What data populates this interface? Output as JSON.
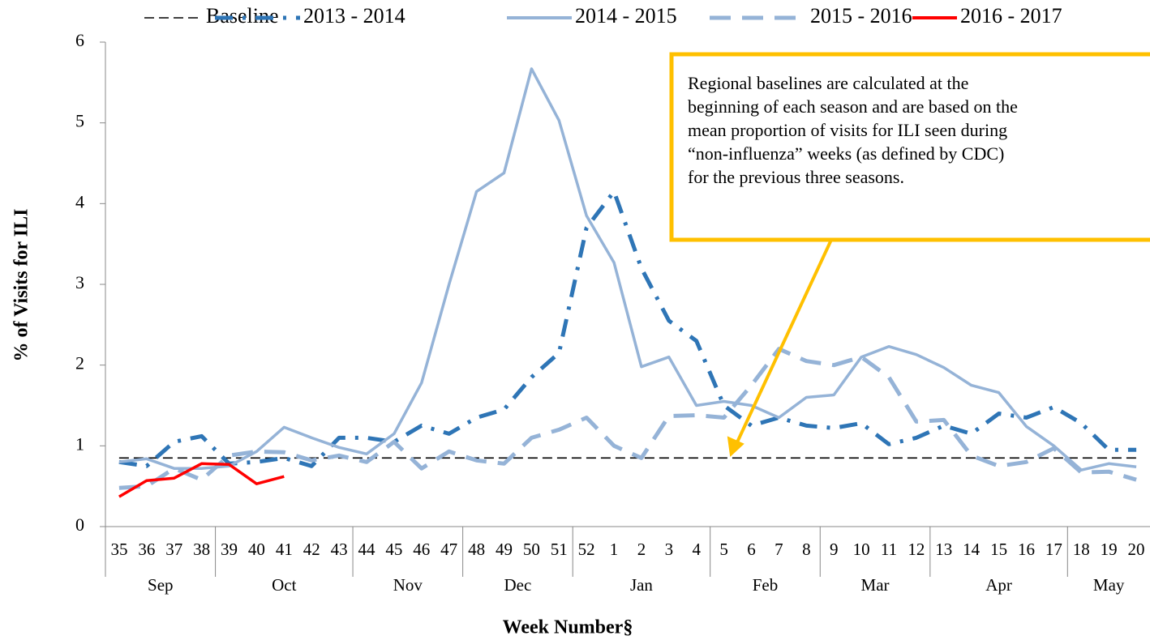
{
  "chart_data": {
    "type": "line",
    "x_label": "Week Number§",
    "y_label": "% of Visits for ILI",
    "categories": [
      "35",
      "36",
      "37",
      "38",
      "39",
      "40",
      "41",
      "42",
      "43",
      "44",
      "45",
      "46",
      "47",
      "48",
      "49",
      "50",
      "51",
      "52",
      "1",
      "2",
      "3",
      "4",
      "5",
      "6",
      "7",
      "8",
      "9",
      "10",
      "11",
      "12",
      "13",
      "14",
      "15",
      "16",
      "17",
      "18",
      "19",
      "20"
    ],
    "x_groups": [
      {
        "label": "Sep",
        "span": 4
      },
      {
        "label": "Oct",
        "span": 5
      },
      {
        "label": "Nov",
        "span": 4
      },
      {
        "label": "Dec",
        "span": 4
      },
      {
        "label": "Jan",
        "span": 5
      },
      {
        "label": "Feb",
        "span": 4
      },
      {
        "label": "Mar",
        "span": 4
      },
      {
        "label": "Apr",
        "span": 5
      },
      {
        "label": "May",
        "span": 3
      }
    ],
    "ylim": [
      0,
      6
    ],
    "yticks": [
      0,
      1,
      2,
      3,
      4,
      5,
      6
    ],
    "grid": false,
    "legend": "top",
    "series": [
      {
        "name": "Baseline",
        "color": "#000000",
        "style": "dashed",
        "values": [
          0.85,
          0.85,
          0.85,
          0.85,
          0.85,
          0.85,
          0.85,
          0.85,
          0.85,
          0.85,
          0.85,
          0.85,
          0.85,
          0.85,
          0.85,
          0.85,
          0.85,
          0.85,
          0.85,
          0.85,
          0.85,
          0.85,
          0.85,
          0.85,
          0.85,
          0.85,
          0.85,
          0.85,
          0.85,
          0.85,
          0.85,
          0.85,
          0.85,
          0.85,
          0.85,
          0.85,
          0.85,
          0.85
        ]
      },
      {
        "name": "2013 - 2014",
        "color": "#2e75b6",
        "style": "dash-dot",
        "values": [
          0.8,
          0.75,
          1.05,
          1.12,
          0.78,
          0.8,
          0.85,
          0.75,
          1.1,
          1.1,
          1.05,
          1.25,
          1.15,
          1.35,
          1.45,
          1.85,
          2.15,
          3.7,
          4.15,
          3.2,
          2.55,
          2.3,
          1.5,
          1.25,
          1.35,
          1.25,
          1.22,
          1.28,
          1.02,
          1.1,
          1.25,
          1.15,
          1.4,
          1.35,
          1.48,
          1.28,
          0.95,
          0.95
        ]
      },
      {
        "name": "2014 - 2015",
        "color": "#95b3d7",
        "style": "solid",
        "values": [
          0.8,
          0.84,
          0.72,
          0.72,
          0.75,
          0.93,
          1.23,
          1.1,
          0.98,
          0.9,
          1.15,
          1.78,
          3.0,
          4.15,
          4.38,
          5.67,
          5.03,
          3.85,
          3.27,
          1.98,
          2.1,
          1.5,
          1.55,
          1.5,
          1.35,
          1.6,
          1.63,
          2.1,
          2.23,
          2.13,
          1.97,
          1.75,
          1.66,
          1.24,
          1.0,
          0.7,
          0.78,
          0.74
        ]
      },
      {
        "name": "2015 - 2016",
        "color": "#95b3d7",
        "style": "long-dash",
        "values": [
          0.48,
          0.5,
          0.72,
          0.58,
          0.88,
          0.93,
          0.92,
          0.82,
          0.88,
          0.8,
          1.05,
          0.72,
          0.93,
          0.82,
          0.78,
          1.1,
          1.2,
          1.35,
          1.0,
          0.85,
          1.37,
          1.38,
          1.35,
          1.75,
          2.2,
          2.05,
          2.0,
          2.1,
          1.85,
          1.3,
          1.32,
          0.88,
          0.75,
          0.8,
          0.97,
          0.67,
          0.68,
          0.58
        ]
      },
      {
        "name": "2016 - 2017",
        "color": "#ff0000",
        "style": "solid",
        "values": [
          0.37,
          0.57,
          0.6,
          0.78,
          0.77,
          0.53,
          0.62,
          null,
          null,
          null,
          null,
          null,
          null,
          null,
          null,
          null,
          null,
          null,
          null,
          null,
          null,
          null,
          null,
          null,
          null,
          null,
          null,
          null,
          null,
          null,
          null,
          null,
          null,
          null,
          null,
          null,
          null,
          null
        ]
      }
    ],
    "annotation": {
      "lines": [
        "Regional baselines are calculated at the",
        "beginning of each season and are based on the",
        "mean proportion of visits for ILI seen during",
        "“non-influenza” weeks (as defined by CDC)",
        "for the previous three seasons."
      ],
      "color": "#ffc000"
    }
  }
}
